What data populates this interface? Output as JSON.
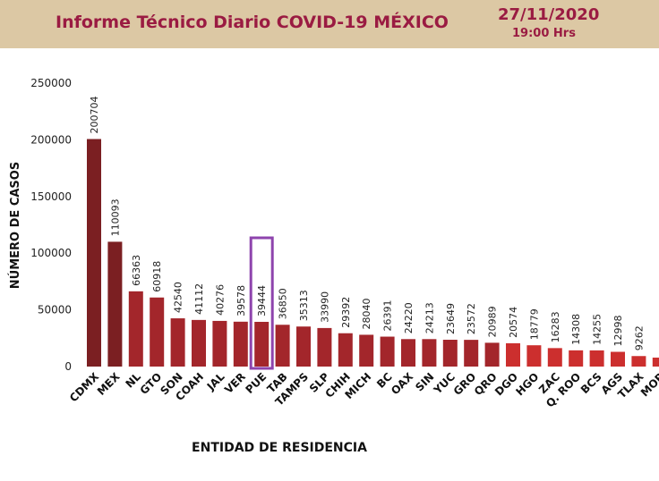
{
  "header": {
    "title": "Informe Técnico Diario COVID-19 MÉXICO",
    "date": "27/11/2020",
    "time": "19:00 Hrs"
  },
  "chart_data": {
    "type": "bar",
    "title": "",
    "xlabel": "ENTIDAD DE RESIDENCIA",
    "ylabel": "NÚMERO DE CASOS",
    "ylim": [
      0,
      250000
    ],
    "yticks": [
      0,
      50000,
      100000,
      150000,
      200000,
      250000
    ],
    "grid": false,
    "highlighted_category": "PUE",
    "categories": [
      "CDMX",
      "MEX",
      "NL",
      "GTO",
      "SON",
      "COAH",
      "JAL",
      "VER",
      "PUE",
      "TAB",
      "TAMPS",
      "SLP",
      "CHIH",
      "MICH",
      "BC",
      "OAX",
      "SIN",
      "YUC",
      "GRO",
      "QRO",
      "DGO",
      "HGO",
      "ZAC",
      "Q. ROO",
      "BCS",
      "AGS",
      "TLAX",
      "MOR"
    ],
    "values": [
      200704,
      110093,
      66363,
      60918,
      42540,
      41112,
      40276,
      39578,
      39444,
      36850,
      35313,
      33990,
      29392,
      28040,
      26391,
      24220,
      24213,
      23649,
      23572,
      20989,
      20574,
      18779,
      16283,
      14308,
      14255,
      12998,
      9262,
      7900
    ],
    "value_labels": [
      "200704",
      "110093",
      "66363",
      "60918",
      "42540",
      "41112",
      "40276",
      "39578",
      "39444",
      "36850",
      "35313",
      "33990",
      "29392",
      "28040",
      "26391",
      "24220",
      "24213",
      "23649",
      "23572",
      "20989",
      "20574",
      "18779",
      "16283",
      "14308",
      "14255",
      "12998",
      "9262",
      ""
    ],
    "colors": {
      "dark": "#7b1f22",
      "mid": "#a3262b",
      "light": "#cc2f2e",
      "highlight": "#8e44ad",
      "title": "#9a1b42"
    }
  }
}
